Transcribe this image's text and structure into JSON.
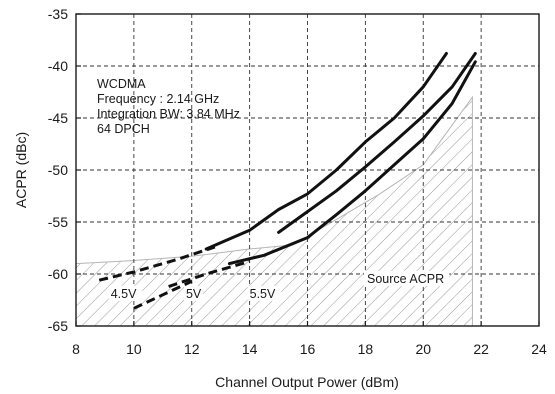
{
  "chart_data": {
    "type": "line",
    "title": "",
    "xlabel": "Channel Output Power (dBm)",
    "ylabel": "ACPR (dBc)",
    "xlim": [
      8,
      24
    ],
    "ylim": [
      -65,
      -35
    ],
    "xticks": [
      8,
      10,
      12,
      14,
      16,
      18,
      20,
      22,
      24
    ],
    "yticks": [
      -65,
      -60,
      -55,
      -50,
      -45,
      -40,
      -35
    ],
    "grid": "dashed",
    "annotation": [
      "WCDMA",
      "Frequency : 2.14 GHz",
      "Integration BW: 3.84 MHz",
      "64 DPCH"
    ],
    "source_region": {
      "label": "Source ACPR",
      "upper_boundary": [
        {
          "x": 8,
          "y": -59.0
        },
        {
          "x": 10,
          "y": -58.7
        },
        {
          "x": 12,
          "y": -58.3
        },
        {
          "x": 14,
          "y": -57.6
        },
        {
          "x": 15.5,
          "y": -57.2
        },
        {
          "x": 18.5,
          "y": -52.3
        },
        {
          "x": 20,
          "y": -49.5
        },
        {
          "x": 21.7,
          "y": -43.0
        }
      ]
    },
    "series": [
      {
        "name": "4.5V",
        "dashed": [
          {
            "x": 10.0,
            "y": -63.3
          },
          {
            "x": 11.0,
            "y": -62.0
          },
          {
            "x": 12.0,
            "y": -60.7
          }
        ],
        "solid": []
      },
      {
        "name": "5V",
        "dashed": [
          {
            "x": 8.8,
            "y": -60.6
          },
          {
            "x": 10.0,
            "y": -59.8
          },
          {
            "x": 11.5,
            "y": -58.6
          },
          {
            "x": 12.8,
            "y": -57.4
          }
        ],
        "solid": [
          {
            "x": 12.5,
            "y": -57.6
          },
          {
            "x": 14.0,
            "y": -55.8
          },
          {
            "x": 15.0,
            "y": -53.8
          },
          {
            "x": 16.0,
            "y": -52.3
          },
          {
            "x": 17.0,
            "y": -50.0
          },
          {
            "x": 18.0,
            "y": -47.3
          },
          {
            "x": 19.0,
            "y": -45.0
          },
          {
            "x": 20.0,
            "y": -42.0
          },
          {
            "x": 20.8,
            "y": -38.8
          }
        ]
      },
      {
        "name": "5.5V",
        "dashed": [
          {
            "x": 11.2,
            "y": -61.2
          },
          {
            "x": 12.5,
            "y": -60.0
          },
          {
            "x": 14.0,
            "y": -58.8
          }
        ],
        "solid": [
          {
            "x": 13.3,
            "y": -59.0
          },
          {
            "x": 14.5,
            "y": -58.2
          },
          {
            "x": 16.0,
            "y": -56.5
          },
          {
            "x": 17.0,
            "y": -54.3
          },
          {
            "x": 18.0,
            "y": -52.0
          },
          {
            "x": 19.0,
            "y": -49.5
          },
          {
            "x": 20.0,
            "y": -47.0
          },
          {
            "x": 21.0,
            "y": -43.6
          },
          {
            "x": 21.8,
            "y": -39.6
          }
        ]
      },
      {
        "name": "",
        "dashed": [],
        "solid": [
          {
            "x": 15.0,
            "y": -56.0
          },
          {
            "x": 16.0,
            "y": -54.0
          },
          {
            "x": 17.0,
            "y": -52.0
          },
          {
            "x": 18.0,
            "y": -49.7
          },
          {
            "x": 19.0,
            "y": -47.3
          },
          {
            "x": 20.0,
            "y": -44.8
          },
          {
            "x": 21.0,
            "y": -42.0
          },
          {
            "x": 21.8,
            "y": -38.8
          }
        ]
      }
    ],
    "curve_labels": [
      {
        "text": "4.5V",
        "x": 9.2,
        "y": -62.3
      },
      {
        "text": "5V",
        "x": 11.8,
        "y": -62.3
      },
      {
        "text": "5.5V",
        "x": 14.0,
        "y": -62.3
      }
    ]
  }
}
